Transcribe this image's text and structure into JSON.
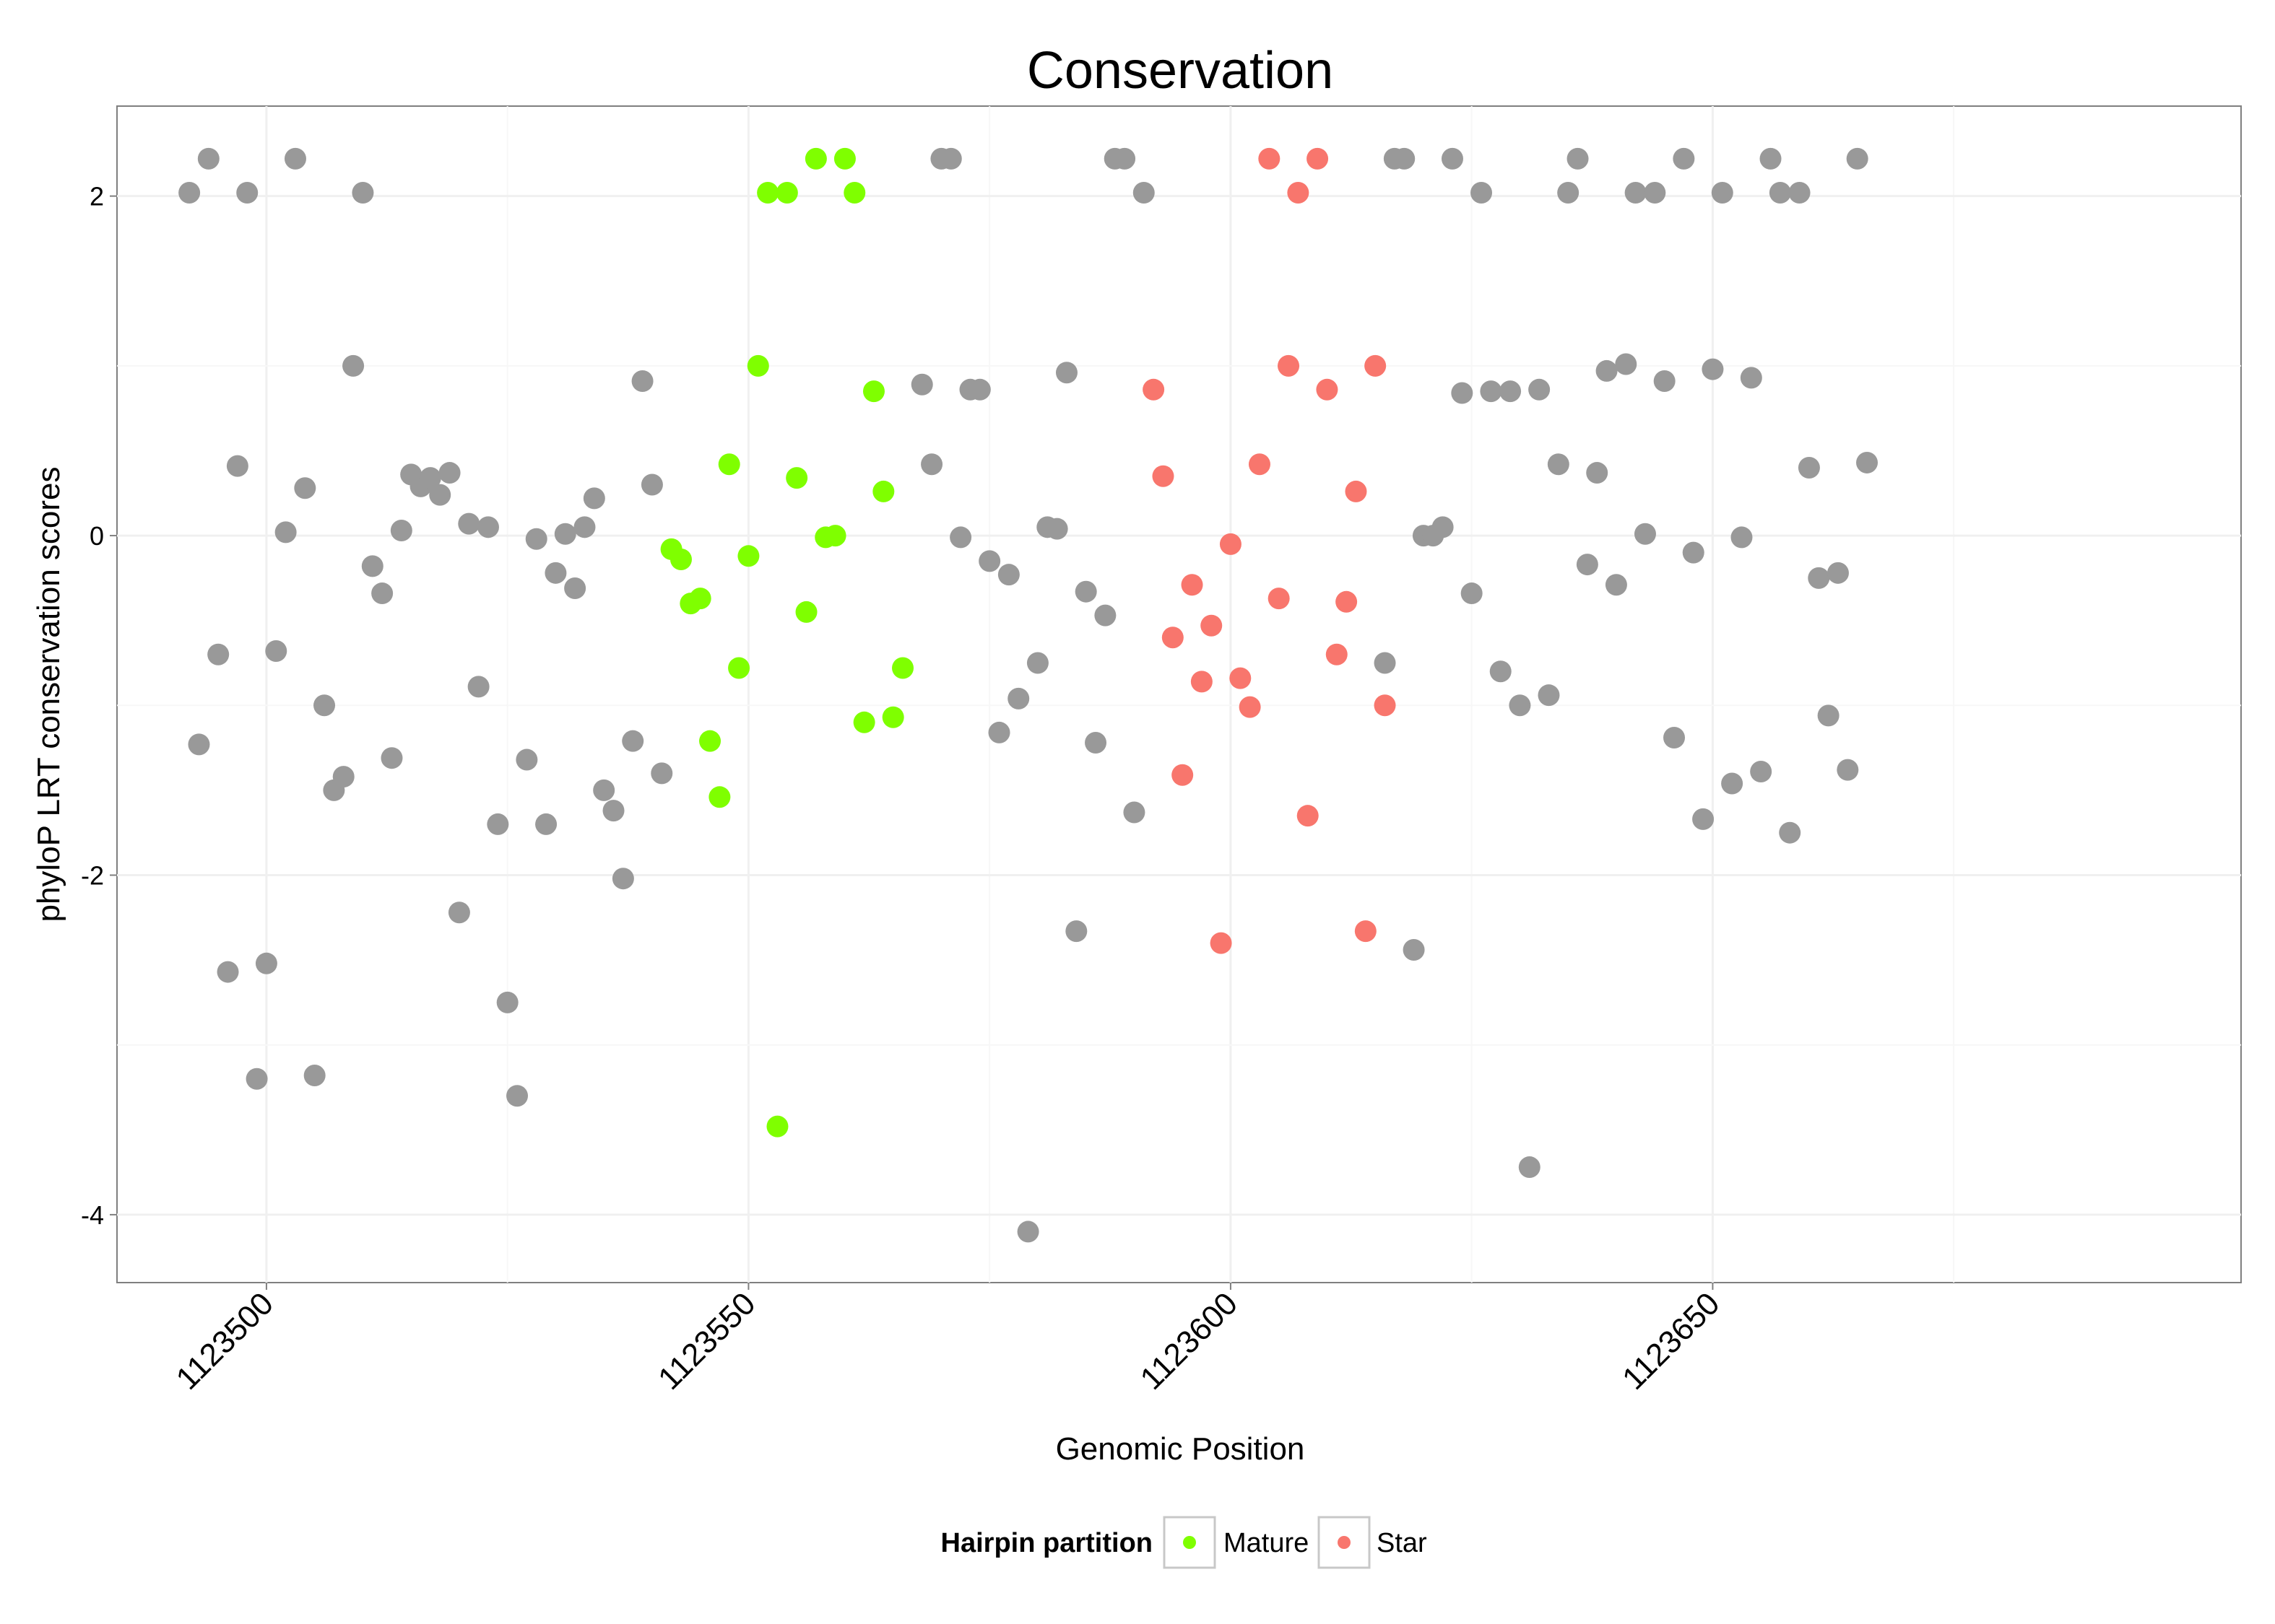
{
  "chart_data": {
    "type": "scatter",
    "title": "Conservation",
    "xlabel": "Genomic Position",
    "ylabel": "phyloP LRT conservation scores",
    "xlim": [
      1123484.5,
      1123704.8
    ],
    "ylim": [
      -4.4,
      2.53
    ],
    "x_ticks": [
      1123500,
      1123550,
      1123600,
      1123650
    ],
    "y_ticks": [
      -4,
      -2,
      0,
      2
    ],
    "x_tick_labels": [
      "1123500",
      "1123550",
      "1123600",
      "1123650"
    ],
    "y_tick_labels": [
      "-4",
      "-2",
      "0",
      "2"
    ],
    "grid": true,
    "legend": {
      "title": "Hairpin partition",
      "position": "bottom",
      "entries": [
        {
          "label": "Mature",
          "color": "#7FFF00"
        },
        {
          "label": "Star",
          "color": "#F8766D"
        }
      ]
    },
    "colors": {
      "other": "#999999",
      "Mature": "#7FFF00",
      "Star": "#F8766D"
    },
    "series": [
      {
        "name": "",
        "group": "other",
        "points": [
          [
            1123492,
            2.02
          ],
          [
            1123493,
            -1.23
          ],
          [
            1123494,
            2.22
          ],
          [
            1123495,
            -0.7
          ],
          [
            1123496,
            -2.57
          ],
          [
            1123497,
            0.41
          ],
          [
            1123498,
            2.02
          ],
          [
            1123499,
            -3.2
          ],
          [
            1123500,
            -2.52
          ],
          [
            1123501,
            -0.68
          ],
          [
            1123502,
            0.02
          ],
          [
            1123503,
            2.22
          ],
          [
            1123504,
            0.28
          ],
          [
            1123505,
            -3.18
          ],
          [
            1123506,
            -1.0
          ],
          [
            1123507,
            -1.5
          ],
          [
            1123508,
            -1.42
          ],
          [
            1123509,
            1.0
          ],
          [
            1123510,
            2.02
          ],
          [
            1123511,
            -0.18
          ],
          [
            1123512,
            -0.34
          ],
          [
            1123513,
            -1.31
          ],
          [
            1123514,
            0.03
          ],
          [
            1123515,
            0.36
          ],
          [
            1123516,
            0.29
          ],
          [
            1123517,
            0.34
          ],
          [
            1123518,
            0.24
          ],
          [
            1123519,
            0.37
          ],
          [
            1123520,
            -2.22
          ],
          [
            1123521,
            0.07
          ],
          [
            1123522,
            -0.89
          ],
          [
            1123523,
            0.05
          ],
          [
            1123524,
            -1.7
          ],
          [
            1123525,
            -2.75
          ],
          [
            1123526,
            -3.3
          ],
          [
            1123527,
            -1.32
          ],
          [
            1123528,
            -0.02
          ],
          [
            1123529,
            -1.7
          ],
          [
            1123530,
            -0.22
          ],
          [
            1123531,
            0.01
          ],
          [
            1123532,
            -0.31
          ],
          [
            1123533,
            0.05
          ],
          [
            1123534,
            0.22
          ],
          [
            1123535,
            -1.5
          ],
          [
            1123536,
            -1.62
          ],
          [
            1123537,
            -2.02
          ],
          [
            1123538,
            -1.21
          ],
          [
            1123539,
            0.91
          ],
          [
            1123540,
            0.3
          ],
          [
            1123541,
            -1.4
          ],
          [
            1123568,
            0.89
          ],
          [
            1123569,
            0.42
          ],
          [
            1123570,
            2.22
          ],
          [
            1123571,
            2.22
          ],
          [
            1123572,
            -0.01
          ],
          [
            1123573,
            0.86
          ],
          [
            1123574,
            0.86
          ],
          [
            1123575,
            -0.15
          ],
          [
            1123576,
            -1.16
          ],
          [
            1123577,
            -0.23
          ],
          [
            1123578,
            -0.96
          ],
          [
            1123579,
            -4.1
          ],
          [
            1123580,
            -0.75
          ],
          [
            1123581,
            0.05
          ],
          [
            1123582,
            0.04
          ],
          [
            1123583,
            0.96
          ],
          [
            1123584,
            -2.33
          ],
          [
            1123585,
            -0.33
          ],
          [
            1123586,
            -1.22
          ],
          [
            1123587,
            -0.47
          ],
          [
            1123588,
            2.22
          ],
          [
            1123589,
            2.22
          ],
          [
            1123590,
            -1.63
          ],
          [
            1123591,
            2.02
          ],
          [
            1123616,
            -0.75
          ],
          [
            1123617,
            2.22
          ],
          [
            1123618,
            2.22
          ],
          [
            1123619,
            -2.44
          ],
          [
            1123620,
            0.0
          ],
          [
            1123621,
            0.0
          ],
          [
            1123622,
            0.05
          ],
          [
            1123623,
            2.22
          ],
          [
            1123624,
            0.84
          ],
          [
            1123625,
            -0.34
          ],
          [
            1123626,
            2.02
          ],
          [
            1123627,
            0.85
          ],
          [
            1123628,
            -0.8
          ],
          [
            1123629,
            0.85
          ],
          [
            1123630,
            -1.0
          ],
          [
            1123631,
            -3.72
          ],
          [
            1123632,
            0.86
          ],
          [
            1123633,
            -0.94
          ],
          [
            1123634,
            0.42
          ],
          [
            1123635,
            2.02
          ],
          [
            1123636,
            2.22
          ],
          [
            1123637,
            -0.17
          ],
          [
            1123638,
            0.37
          ],
          [
            1123639,
            0.97
          ],
          [
            1123640,
            -0.29
          ],
          [
            1123641,
            1.01
          ],
          [
            1123642,
            2.02
          ],
          [
            1123643,
            0.01
          ],
          [
            1123644,
            2.02
          ],
          [
            1123645,
            0.91
          ],
          [
            1123646,
            -1.19
          ],
          [
            1123647,
            2.22
          ],
          [
            1123648,
            -0.1
          ],
          [
            1123649,
            -1.67
          ],
          [
            1123650,
            0.98
          ],
          [
            1123651,
            2.02
          ],
          [
            1123652,
            -1.46
          ],
          [
            1123653,
            -0.01
          ],
          [
            1123654,
            0.93
          ],
          [
            1123655,
            -1.39
          ],
          [
            1123656,
            2.22
          ],
          [
            1123657,
            2.02
          ],
          [
            1123658,
            -1.75
          ],
          [
            1123659,
            2.02
          ],
          [
            1123660,
            0.4
          ],
          [
            1123661,
            -0.25
          ],
          [
            1123662,
            -1.06
          ],
          [
            1123663,
            -0.22
          ],
          [
            1123664,
            -1.38
          ],
          [
            1123665,
            2.22
          ],
          [
            1123666,
            0.43
          ]
        ]
      },
      {
        "name": "Mature",
        "group": "Mature",
        "points": [
          [
            1123542,
            -0.08
          ],
          [
            1123543,
            -0.14
          ],
          [
            1123544,
            -0.4
          ],
          [
            1123545,
            -0.37
          ],
          [
            1123546,
            -1.21
          ],
          [
            1123547,
            -1.54
          ],
          [
            1123548,
            0.42
          ],
          [
            1123549,
            -0.78
          ],
          [
            1123550,
            -0.12
          ],
          [
            1123551,
            1.0
          ],
          [
            1123552,
            2.02
          ],
          [
            1123553,
            -3.48
          ],
          [
            1123554,
            2.02
          ],
          [
            1123555,
            0.34
          ],
          [
            1123556,
            -0.45
          ],
          [
            1123557,
            2.22
          ],
          [
            1123558,
            -0.01
          ],
          [
            1123559,
            0.0
          ],
          [
            1123560,
            2.22
          ],
          [
            1123561,
            2.02
          ],
          [
            1123562,
            -1.1
          ],
          [
            1123563,
            0.85
          ],
          [
            1123564,
            0.26
          ],
          [
            1123565,
            -1.07
          ],
          [
            1123566,
            -0.78
          ]
        ]
      },
      {
        "name": "Star",
        "group": "Star",
        "points": [
          [
            1123592,
            0.86
          ],
          [
            1123593,
            0.35
          ],
          [
            1123594,
            -0.6
          ],
          [
            1123595,
            -1.41
          ],
          [
            1123596,
            -0.29
          ],
          [
            1123597,
            -0.86
          ],
          [
            1123598,
            -0.53
          ],
          [
            1123599,
            -2.4
          ],
          [
            1123600,
            -0.05
          ],
          [
            1123601,
            -0.84
          ],
          [
            1123602,
            -1.01
          ],
          [
            1123603,
            0.42
          ],
          [
            1123604,
            2.22
          ],
          [
            1123605,
            -0.37
          ],
          [
            1123606,
            1.0
          ],
          [
            1123607,
            2.02
          ],
          [
            1123608,
            -1.65
          ],
          [
            1123609,
            2.22
          ],
          [
            1123610,
            0.86
          ],
          [
            1123611,
            -0.7
          ],
          [
            1123612,
            -0.39
          ],
          [
            1123613,
            0.26
          ],
          [
            1123614,
            -2.33
          ],
          [
            1123615,
            1.0
          ],
          [
            1123616,
            -1.0
          ]
        ]
      }
    ]
  }
}
